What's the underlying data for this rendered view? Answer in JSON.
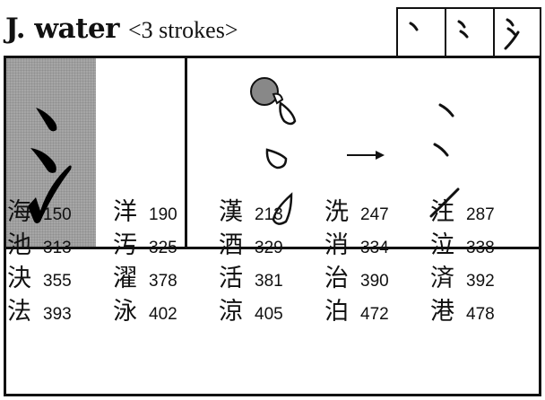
{
  "header": {
    "title": "J. water",
    "subtitle": "<3 strokes>"
  },
  "stroke_sequence": {
    "icon": "stroke-order-steps"
  },
  "illustration": {
    "icon": "water-drops-to-strokes",
    "arrow": "→"
  },
  "kanji_list": [
    [
      {
        "char": "海",
        "num": "150"
      },
      {
        "char": "洋",
        "num": "190"
      },
      {
        "char": "漢",
        "num": "213"
      },
      {
        "char": "洗",
        "num": "247"
      },
      {
        "char": "注",
        "num": "287"
      }
    ],
    [
      {
        "char": "池",
        "num": "313"
      },
      {
        "char": "汚",
        "num": "325"
      },
      {
        "char": "酒",
        "num": "329"
      },
      {
        "char": "消",
        "num": "334"
      },
      {
        "char": "泣",
        "num": "338"
      }
    ],
    [
      {
        "char": "決",
        "num": "355"
      },
      {
        "char": "濯",
        "num": "378"
      },
      {
        "char": "活",
        "num": "381"
      },
      {
        "char": "治",
        "num": "390"
      },
      {
        "char": "済",
        "num": "392"
      }
    ],
    [
      {
        "char": "法",
        "num": "393"
      },
      {
        "char": "泳",
        "num": "402"
      },
      {
        "char": "涼",
        "num": "405"
      },
      {
        "char": "泊",
        "num": "472"
      },
      {
        "char": "港",
        "num": "478"
      }
    ]
  ]
}
